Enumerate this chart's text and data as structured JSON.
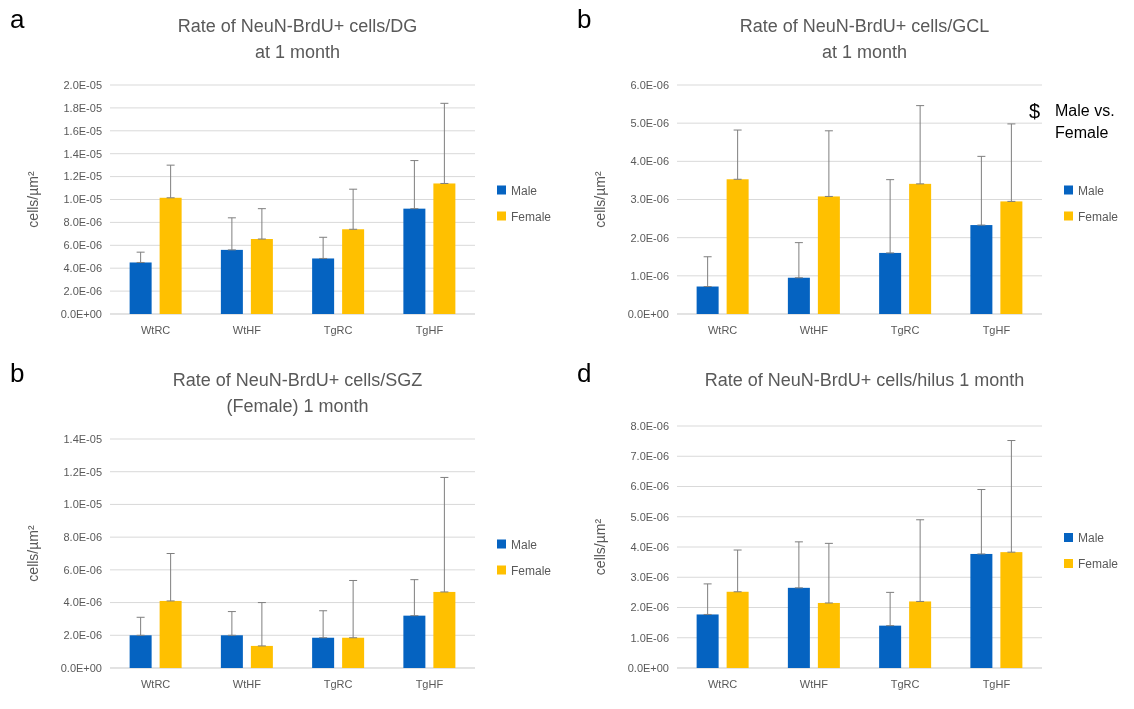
{
  "chart_data": [
    {
      "type": "bar",
      "title": "Rate of NeuN-BrdU+ cells/DG\nat 1 month",
      "ylabel": "cells/µm²",
      "annotations": [
        "a"
      ],
      "categories": [
        "WtRC",
        "WtHF",
        "TgRC",
        "TgHF"
      ],
      "legend": "right",
      "grid": "y",
      "ylim": [
        0,
        2e-05
      ],
      "yticks": [
        {
          "value": 0,
          "label": "0.0E+00"
        },
        {
          "value": 2e-06,
          "label": "2.0E-06"
        },
        {
          "value": 4e-06,
          "label": "4.0E-06"
        },
        {
          "value": 6e-06,
          "label": "6.0E-06"
        },
        {
          "value": 8e-06,
          "label": "8.0E-06"
        },
        {
          "value": 1e-05,
          "label": "1.0E-05"
        },
        {
          "value": 1.2e-05,
          "label": "1.2E-05"
        },
        {
          "value": 1.4e-05,
          "label": "1.4E-05"
        },
        {
          "value": 1.6e-05,
          "label": "1.6E-05"
        },
        {
          "value": 1.8e-05,
          "label": "1.8E-05"
        },
        {
          "value": 2e-05,
          "label": "2.0E-05"
        }
      ],
      "series": [
        {
          "name": "Male",
          "color": "#0563c1",
          "values": [
            4.5e-06,
            5.6e-06,
            4.85e-06,
            9.2e-06
          ],
          "errors": [
            [
              4.5e-06,
              5.4e-06
            ],
            [
              5.6e-06,
              8.4e-06
            ],
            [
              4.85e-06,
              6.7e-06
            ],
            [
              9.2e-06,
              1.34e-05
            ]
          ]
        },
        {
          "name": "Female",
          "color": "#ffc000",
          "values": [
            1.015e-05,
            6.55e-06,
            7.4e-06,
            1.14e-05
          ],
          "errors": [
            [
              1.015e-05,
              1.3e-05
            ],
            [
              6.55e-06,
              9.2e-06
            ],
            [
              7.4e-06,
              1.09e-05
            ],
            [
              1.14e-05,
              1.84e-05
            ]
          ]
        }
      ]
    },
    {
      "type": "bar",
      "title": "Rate of NeuN-BrdU+ cells/GCL\nat 1 month",
      "ylabel": "cells/µm²",
      "annotations": [
        "b",
        "$",
        "Male vs.\nFemale"
      ],
      "categories": [
        "WtRC",
        "WtHF",
        "TgRC",
        "TgHF"
      ],
      "legend": "right",
      "grid": "y",
      "ylim": [
        0,
        6e-06
      ],
      "yticks": [
        {
          "value": 0,
          "label": "0.0E+00"
        },
        {
          "value": 1e-06,
          "label": "1.0E-06"
        },
        {
          "value": 2e-06,
          "label": "2.0E-06"
        },
        {
          "value": 3e-06,
          "label": "3.0E-06"
        },
        {
          "value": 4e-06,
          "label": "4.0E-06"
        },
        {
          "value": 5e-06,
          "label": "5.0E-06"
        },
        {
          "value": 6e-06,
          "label": "6.0E-06"
        }
      ],
      "series": [
        {
          "name": "Male",
          "color": "#0563c1",
          "values": [
            7.2e-07,
            9.5e-07,
            1.6e-06,
            2.33e-06
          ],
          "errors": [
            [
              7.2e-07,
              1.5e-06
            ],
            [
              9.5e-07,
              1.87e-06
            ],
            [
              1.6e-06,
              3.52e-06
            ],
            [
              2.33e-06,
              4.13e-06
            ]
          ]
        },
        {
          "name": "Female",
          "color": "#ffc000",
          "values": [
            3.53e-06,
            3.08e-06,
            3.41e-06,
            2.95e-06
          ],
          "errors": [
            [
              3.53e-06,
              4.82e-06
            ],
            [
              3.08e-06,
              4.8e-06
            ],
            [
              3.41e-06,
              5.46e-06
            ],
            [
              2.95e-06,
              4.98e-06
            ]
          ]
        }
      ]
    },
    {
      "type": "bar",
      "title": "Rate of NeuN-BrdU+ cells/SGZ\n(Female) 1 month",
      "ylabel": "cells/µm²",
      "annotations": [
        "b"
      ],
      "categories": [
        "WtRC",
        "WtHF",
        "TgRC",
        "TgHF"
      ],
      "legend": "right",
      "grid": "y",
      "ylim": [
        0,
        1.4e-05
      ],
      "yticks": [
        {
          "value": 0,
          "label": "0.0E+00"
        },
        {
          "value": 2e-06,
          "label": "2.0E-06"
        },
        {
          "value": 4e-06,
          "label": "4.0E-06"
        },
        {
          "value": 6e-06,
          "label": "6.0E-06"
        },
        {
          "value": 8e-06,
          "label": "8.0E-06"
        },
        {
          "value": 1e-05,
          "label": "1.0E-05"
        },
        {
          "value": 1.2e-05,
          "label": "1.2E-05"
        },
        {
          "value": 1.4e-05,
          "label": "1.4E-05"
        }
      ],
      "series": [
        {
          "name": "Male",
          "color": "#0563c1",
          "values": [
            2e-06,
            2e-06,
            1.85e-06,
            3.2e-06
          ],
          "errors": [
            [
              2e-06,
              3.1e-06
            ],
            [
              2e-06,
              3.45e-06
            ],
            [
              1.85e-06,
              3.5e-06
            ],
            [
              3.2e-06,
              5.4e-06
            ]
          ]
        },
        {
          "name": "Female",
          "color": "#ffc000",
          "values": [
            4.1e-06,
            1.35e-06,
            1.85e-06,
            4.65e-06
          ],
          "errors": [
            [
              4.1e-06,
              7e-06
            ],
            [
              1.35e-06,
              4e-06
            ],
            [
              1.85e-06,
              5.35e-06
            ],
            [
              4.65e-06,
              1.165e-05
            ]
          ]
        }
      ]
    },
    {
      "type": "bar",
      "title": "Rate of NeuN-BrdU+ cells/hilus 1 month",
      "ylabel": "cells/µm²",
      "annotations": [
        "d"
      ],
      "categories": [
        "WtRC",
        "WtHF",
        "TgRC",
        "TgHF"
      ],
      "legend": "right",
      "grid": "y",
      "ylim": [
        0,
        8e-06
      ],
      "yticks": [
        {
          "value": 0,
          "label": "0.0E+00"
        },
        {
          "value": 1e-06,
          "label": "1.0E-06"
        },
        {
          "value": 2e-06,
          "label": "2.0E-06"
        },
        {
          "value": 3e-06,
          "label": "3.0E-06"
        },
        {
          "value": 4e-06,
          "label": "4.0E-06"
        },
        {
          "value": 5e-06,
          "label": "5.0E-06"
        },
        {
          "value": 6e-06,
          "label": "6.0E-06"
        },
        {
          "value": 7e-06,
          "label": "7.0E-06"
        },
        {
          "value": 8e-06,
          "label": "8.0E-06"
        }
      ],
      "series": [
        {
          "name": "Male",
          "color": "#0563c1",
          "values": [
            1.77e-06,
            2.65e-06,
            1.4e-06,
            3.77e-06
          ],
          "errors": [
            [
              1.77e-06,
              2.78e-06
            ],
            [
              2.65e-06,
              4.17e-06
            ],
            [
              1.4e-06,
              2.5e-06
            ],
            [
              3.77e-06,
              5.9e-06
            ]
          ]
        },
        {
          "name": "Female",
          "color": "#ffc000",
          "values": [
            2.52e-06,
            2.15e-06,
            2.2e-06,
            3.83e-06
          ],
          "errors": [
            [
              2.52e-06,
              3.9e-06
            ],
            [
              2.15e-06,
              4.12e-06
            ],
            [
              2.2e-06,
              4.9e-06
            ],
            [
              3.83e-06,
              7.52e-06
            ]
          ]
        }
      ]
    }
  ]
}
